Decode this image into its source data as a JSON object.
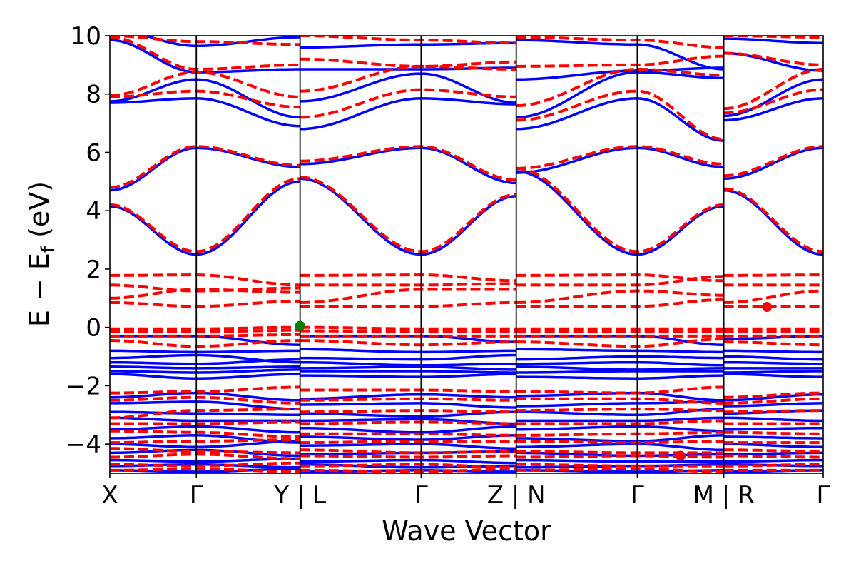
{
  "chart_data": {
    "type": "line",
    "title": "",
    "xlabel": "Wave Vector",
    "ylabel": "E − E_f (eV)",
    "ylabel_parts": {
      "main": "E  −  E",
      "sub": "f",
      "unit": " (eV)"
    },
    "ylim": [
      -5,
      10
    ],
    "yticks": [
      10,
      8,
      6,
      4,
      2,
      0,
      -2,
      -4
    ],
    "ytick_labels": [
      "10",
      "8",
      "6",
      "4",
      "2",
      "0",
      "−2",
      "−4"
    ],
    "kpath_labels": [
      "X",
      "Γ",
      "Y | L",
      "Γ",
      "Z | N",
      "Γ",
      "M | R",
      "Γ"
    ],
    "kpath_positions": [
      0,
      1,
      2.2,
      3.6,
      4.7,
      6.1,
      7.1,
      8.25
    ],
    "segments": [
      {
        "name": "X-Γ-Y",
        "k": [
          0,
          1,
          2.2
        ]
      },
      {
        "name": "L-Γ-Z",
        "k": [
          2.2,
          3.6,
          4.7
        ]
      },
      {
        "name": "N-Γ-M",
        "k": [
          4.7,
          6.1,
          7.1
        ]
      },
      {
        "name": "R-Γ",
        "k": [
          7.1,
          8.25
        ]
      }
    ],
    "series": [
      {
        "name": "blue-solid",
        "style": "solid",
        "color": "#0000ff",
        "bands": [
          [
            [
              4.15,
              2.5,
              5.0
            ],
            [
              5.1,
              2.5,
              4.5
            ],
            [
              5.35,
              2.5,
              4.15
            ],
            [
              4.7,
              2.5
            ]
          ],
          [
            [
              4.7,
              6.15,
              5.5
            ],
            [
              5.6,
              6.15,
              4.95
            ],
            [
              5.3,
              6.15,
              5.5
            ],
            [
              5.1,
              6.15
            ]
          ],
          [
            [
              7.7,
              7.85,
              6.9
            ],
            [
              6.8,
              7.85,
              7.65
            ],
            [
              6.8,
              7.85,
              6.4
            ],
            [
              7.1,
              7.85
            ]
          ],
          [
            [
              7.75,
              8.5,
              7.2
            ],
            [
              7.75,
              8.7,
              7.7
            ],
            [
              7.2,
              8.75,
              8.55
            ],
            [
              7.25,
              8.5
            ]
          ],
          [
            [
              9.85,
              8.75,
              8.85
            ],
            [
              8.85,
              8.85,
              8.9
            ],
            [
              8.5,
              8.8,
              8.9
            ],
            [
              9.4,
              8.8
            ]
          ],
          [
            [
              10.2,
              9.65,
              9.95
            ],
            [
              9.6,
              9.7,
              9.75
            ],
            [
              9.85,
              9.7,
              8.85
            ],
            [
              9.9,
              9.75
            ]
          ],
          [
            [
              -0.3,
              -0.3,
              -0.6
            ],
            [
              -0.3,
              -0.3,
              -0.5
            ],
            [
              -0.3,
              -0.3,
              -0.6
            ],
            [
              -0.4,
              -0.3
            ]
          ],
          [
            [
              -0.8,
              -0.85,
              -0.8
            ],
            [
              -0.75,
              -0.85,
              -0.8
            ],
            [
              -0.75,
              -0.8,
              -0.85
            ],
            [
              -0.8,
              -0.85
            ]
          ],
          [
            [
              -1.05,
              -0.95,
              -1.2
            ],
            [
              -1.05,
              -1.1,
              -0.95
            ],
            [
              -1.1,
              -1.0,
              -1.05
            ],
            [
              -1.0,
              -1.1
            ]
          ],
          [
            [
              -1.2,
              -1.25,
              -1.1
            ],
            [
              -1.2,
              -1.3,
              -1.25
            ],
            [
              -1.25,
              -1.2,
              -1.3
            ],
            [
              -1.2,
              -1.25
            ]
          ],
          [
            [
              -1.35,
              -1.4,
              -1.35
            ],
            [
              -1.4,
              -1.35,
              -1.45
            ],
            [
              -1.35,
              -1.45,
              -1.4
            ],
            [
              -1.4,
              -1.4
            ]
          ],
          [
            [
              -1.5,
              -1.55,
              -1.45
            ],
            [
              -1.5,
              -1.5,
              -1.55
            ],
            [
              -1.55,
              -1.5,
              -1.5
            ],
            [
              -1.55,
              -1.5
            ]
          ],
          [
            [
              -1.6,
              -1.75,
              -1.6
            ],
            [
              -1.65,
              -1.7,
              -1.6
            ],
            [
              -1.7,
              -1.75,
              -1.65
            ],
            [
              -1.6,
              -1.7
            ]
          ],
          [
            [
              -2.4,
              -2.25,
              -2.5
            ],
            [
              -2.45,
              -2.3,
              -2.4
            ],
            [
              -2.35,
              -2.25,
              -2.5
            ],
            [
              -2.5,
              -2.3
            ]
          ],
          [
            [
              -2.6,
              -2.55,
              -2.8
            ],
            [
              -2.65,
              -2.6,
              -2.75
            ],
            [
              -2.7,
              -2.6,
              -2.55
            ],
            [
              -2.7,
              -2.6
            ]
          ],
          [
            [
              -2.9,
              -2.95,
              -3.0
            ],
            [
              -2.95,
              -3.05,
              -2.9
            ],
            [
              -2.9,
              -3.0,
              -2.8
            ],
            [
              -2.95,
              -2.85
            ]
          ],
          [
            [
              -3.1,
              -3.2,
              -3.2
            ],
            [
              -3.2,
              -3.15,
              -3.3
            ],
            [
              -3.2,
              -3.2,
              -3.1
            ],
            [
              -3.1,
              -3.2
            ]
          ],
          [
            [
              -3.5,
              -3.4,
              -3.6
            ],
            [
              -3.45,
              -3.6,
              -3.4
            ],
            [
              -3.5,
              -3.4,
              -3.55
            ],
            [
              -3.5,
              -3.45
            ]
          ],
          [
            [
              -3.8,
              -3.7,
              -3.95
            ],
            [
              -3.75,
              -3.85,
              -3.7
            ],
            [
              -3.8,
              -3.9,
              -3.7
            ],
            [
              -3.75,
              -3.8
            ]
          ],
          [
            [
              -4.0,
              -4.1,
              -3.9
            ],
            [
              -4.05,
              -4.0,
              -4.15
            ],
            [
              -4.1,
              -4.0,
              -4.2
            ],
            [
              -4.0,
              -4.1
            ]
          ],
          [
            [
              -4.3,
              -4.2,
              -4.4
            ],
            [
              -4.35,
              -4.3,
              -4.25
            ],
            [
              -4.3,
              -4.4,
              -4.35
            ],
            [
              -4.35,
              -4.3
            ]
          ],
          [
            [
              -4.55,
              -4.6,
              -4.5
            ],
            [
              -4.6,
              -4.55,
              -4.65
            ],
            [
              -4.55,
              -4.6,
              -4.6
            ],
            [
              -4.6,
              -4.55
            ]
          ],
          [
            [
              -4.75,
              -4.7,
              -4.8
            ],
            [
              -4.7,
              -4.8,
              -4.75
            ],
            [
              -4.8,
              -4.75,
              -4.7
            ],
            [
              -4.7,
              -4.75
            ]
          ],
          [
            [
              -4.9,
              -4.95,
              -4.85
            ],
            [
              -4.95,
              -4.9,
              -4.95
            ],
            [
              -4.9,
              -4.95,
              -4.9
            ],
            [
              -4.95,
              -4.9
            ]
          ]
        ]
      },
      {
        "name": "red-dashed",
        "style": "dashed",
        "color": "#ff0000",
        "bands": [
          [
            [
              4.2,
              2.6,
              5.1
            ],
            [
              5.15,
              2.6,
              4.55
            ],
            [
              5.45,
              2.6,
              4.2
            ],
            [
              4.75,
              2.6
            ]
          ],
          [
            [
              4.8,
              6.2,
              5.55
            ],
            [
              5.7,
              6.2,
              5.05
            ],
            [
              5.45,
              6.2,
              5.6
            ],
            [
              5.2,
              6.2
            ]
          ],
          [
            [
              7.9,
              8.1,
              7.55
            ],
            [
              7.2,
              8.15,
              7.9
            ],
            [
              7.1,
              8.1,
              6.45
            ],
            [
              7.35,
              8.15
            ]
          ],
          [
            [
              7.95,
              8.75,
              7.9
            ],
            [
              8.1,
              8.95,
              8.85
            ],
            [
              7.6,
              8.85,
              8.65
            ],
            [
              7.5,
              8.85
            ]
          ],
          [
            [
              9.95,
              8.85,
              9.0
            ],
            [
              9.2,
              8.95,
              9.1
            ],
            [
              8.95,
              9.0,
              9.3
            ],
            [
              9.4,
              9.0
            ]
          ],
          [
            [
              10.0,
              9.8,
              9.7
            ],
            [
              10.0,
              9.85,
              9.75
            ],
            [
              9.95,
              9.85,
              9.6
            ],
            [
              10.0,
              9.95
            ]
          ],
          [
            [
              1.78,
              1.8,
              1.45
            ],
            [
              1.78,
              1.8,
              1.6
            ],
            [
              1.78,
              1.8,
              1.6
            ],
            [
              1.78,
              1.8
            ]
          ],
          [
            [
              1.45,
              1.25,
              1.35
            ],
            [
              1.45,
              1.45,
              1.5
            ],
            [
              1.45,
              1.45,
              1.75
            ],
            [
              1.45,
              1.45
            ]
          ],
          [
            [
              1.0,
              1.3,
              1.2
            ],
            [
              0.85,
              1.3,
              1.3
            ],
            [
              0.85,
              1.25,
              1.1
            ],
            [
              0.85,
              1.25
            ]
          ],
          [
            [
              0.85,
              0.72,
              0.9
            ],
            [
              0.72,
              0.72,
              0.85
            ],
            [
              0.72,
              0.72,
              0.95
            ],
            [
              0.72,
              0.72
            ]
          ],
          [
            [
              -0.05,
              -0.05,
              0.0
            ],
            [
              0.0,
              -0.05,
              -0.05
            ],
            [
              -0.05,
              -0.05,
              -0.05
            ],
            [
              -0.05,
              -0.05
            ]
          ],
          [
            [
              -0.15,
              -0.15,
              -0.1
            ],
            [
              -0.12,
              -0.15,
              -0.15
            ],
            [
              -0.15,
              -0.15,
              -0.15
            ],
            [
              -0.15,
              -0.15
            ]
          ],
          [
            [
              -0.3,
              -0.3,
              -0.25
            ],
            [
              -0.3,
              -0.3,
              -0.3
            ],
            [
              -0.3,
              -0.3,
              -0.3
            ],
            [
              -0.3,
              -0.3
            ]
          ],
          [
            [
              -0.45,
              -0.65,
              -0.45
            ],
            [
              -0.45,
              -0.6,
              -0.5
            ],
            [
              -0.5,
              -0.65,
              -0.4
            ],
            [
              -0.5,
              -0.6
            ]
          ],
          [
            [
              -2.25,
              -2.2,
              -2.05
            ],
            [
              -2.15,
              -2.15,
              -2.2
            ],
            [
              -2.2,
              -2.25,
              -2.05
            ],
            [
              -2.4,
              -2.25
            ]
          ],
          [
            [
              -2.5,
              -2.4,
              -2.6
            ],
            [
              -2.5,
              -2.45,
              -2.5
            ],
            [
              -2.45,
              -2.45,
              -2.6
            ],
            [
              -2.6,
              -2.45
            ]
          ],
          [
            [
              -3.1,
              -2.85,
              -2.8
            ],
            [
              -2.9,
              -2.85,
              -2.9
            ],
            [
              -2.85,
              -2.8,
              -2.85
            ],
            [
              -2.9,
              -2.85
            ]
          ],
          [
            [
              -3.3,
              -3.3,
              -3.25
            ],
            [
              -3.3,
              -3.25,
              -3.3
            ],
            [
              -3.3,
              -3.3,
              -3.2
            ],
            [
              -3.3,
              -3.3
            ]
          ],
          [
            [
              -3.55,
              -3.6,
              -3.75
            ],
            [
              -3.65,
              -3.65,
              -3.7
            ],
            [
              -3.7,
              -3.65,
              -3.6
            ],
            [
              -3.6,
              -3.65
            ]
          ],
          [
            [
              -3.95,
              -3.9,
              -3.85
            ],
            [
              -3.95,
              -3.9,
              -3.9
            ],
            [
              -3.9,
              -3.95,
              -3.9
            ],
            [
              -3.95,
              -3.95
            ]
          ],
          [
            [
              -4.15,
              -4.25,
              -4.3
            ],
            [
              -4.2,
              -4.3,
              -4.25
            ],
            [
              -4.25,
              -4.3,
              -4.3
            ],
            [
              -4.2,
              -4.25
            ]
          ],
          [
            [
              -4.45,
              -4.35,
              -4.5
            ],
            [
              -4.4,
              -4.45,
              -4.4
            ],
            [
              -4.45,
              -4.4,
              -4.45
            ],
            [
              -4.4,
              -4.45
            ]
          ],
          [
            [
              -4.7,
              -4.75,
              -4.65
            ],
            [
              -4.75,
              -4.7,
              -4.8
            ],
            [
              -4.7,
              -4.75,
              -4.75
            ],
            [
              -4.75,
              -4.7
            ]
          ],
          [
            [
              -4.9,
              -4.85,
              -4.95
            ],
            [
              -4.9,
              -4.95,
              -4.85
            ],
            [
              -4.9,
              -4.85,
              -4.95
            ],
            [
              -4.9,
              -4.9
            ]
          ]
        ]
      }
    ],
    "markers": [
      {
        "name": "green-dot",
        "k": 2.2,
        "E": 0.05,
        "color": "#008000"
      },
      {
        "name": "red-dot-1",
        "k": 7.6,
        "E": 0.7,
        "color": "#ff0000"
      },
      {
        "name": "red-dot-2",
        "k": 6.6,
        "E": -4.4,
        "color": "#ff0000"
      }
    ],
    "grid": false,
    "legend": "none"
  }
}
